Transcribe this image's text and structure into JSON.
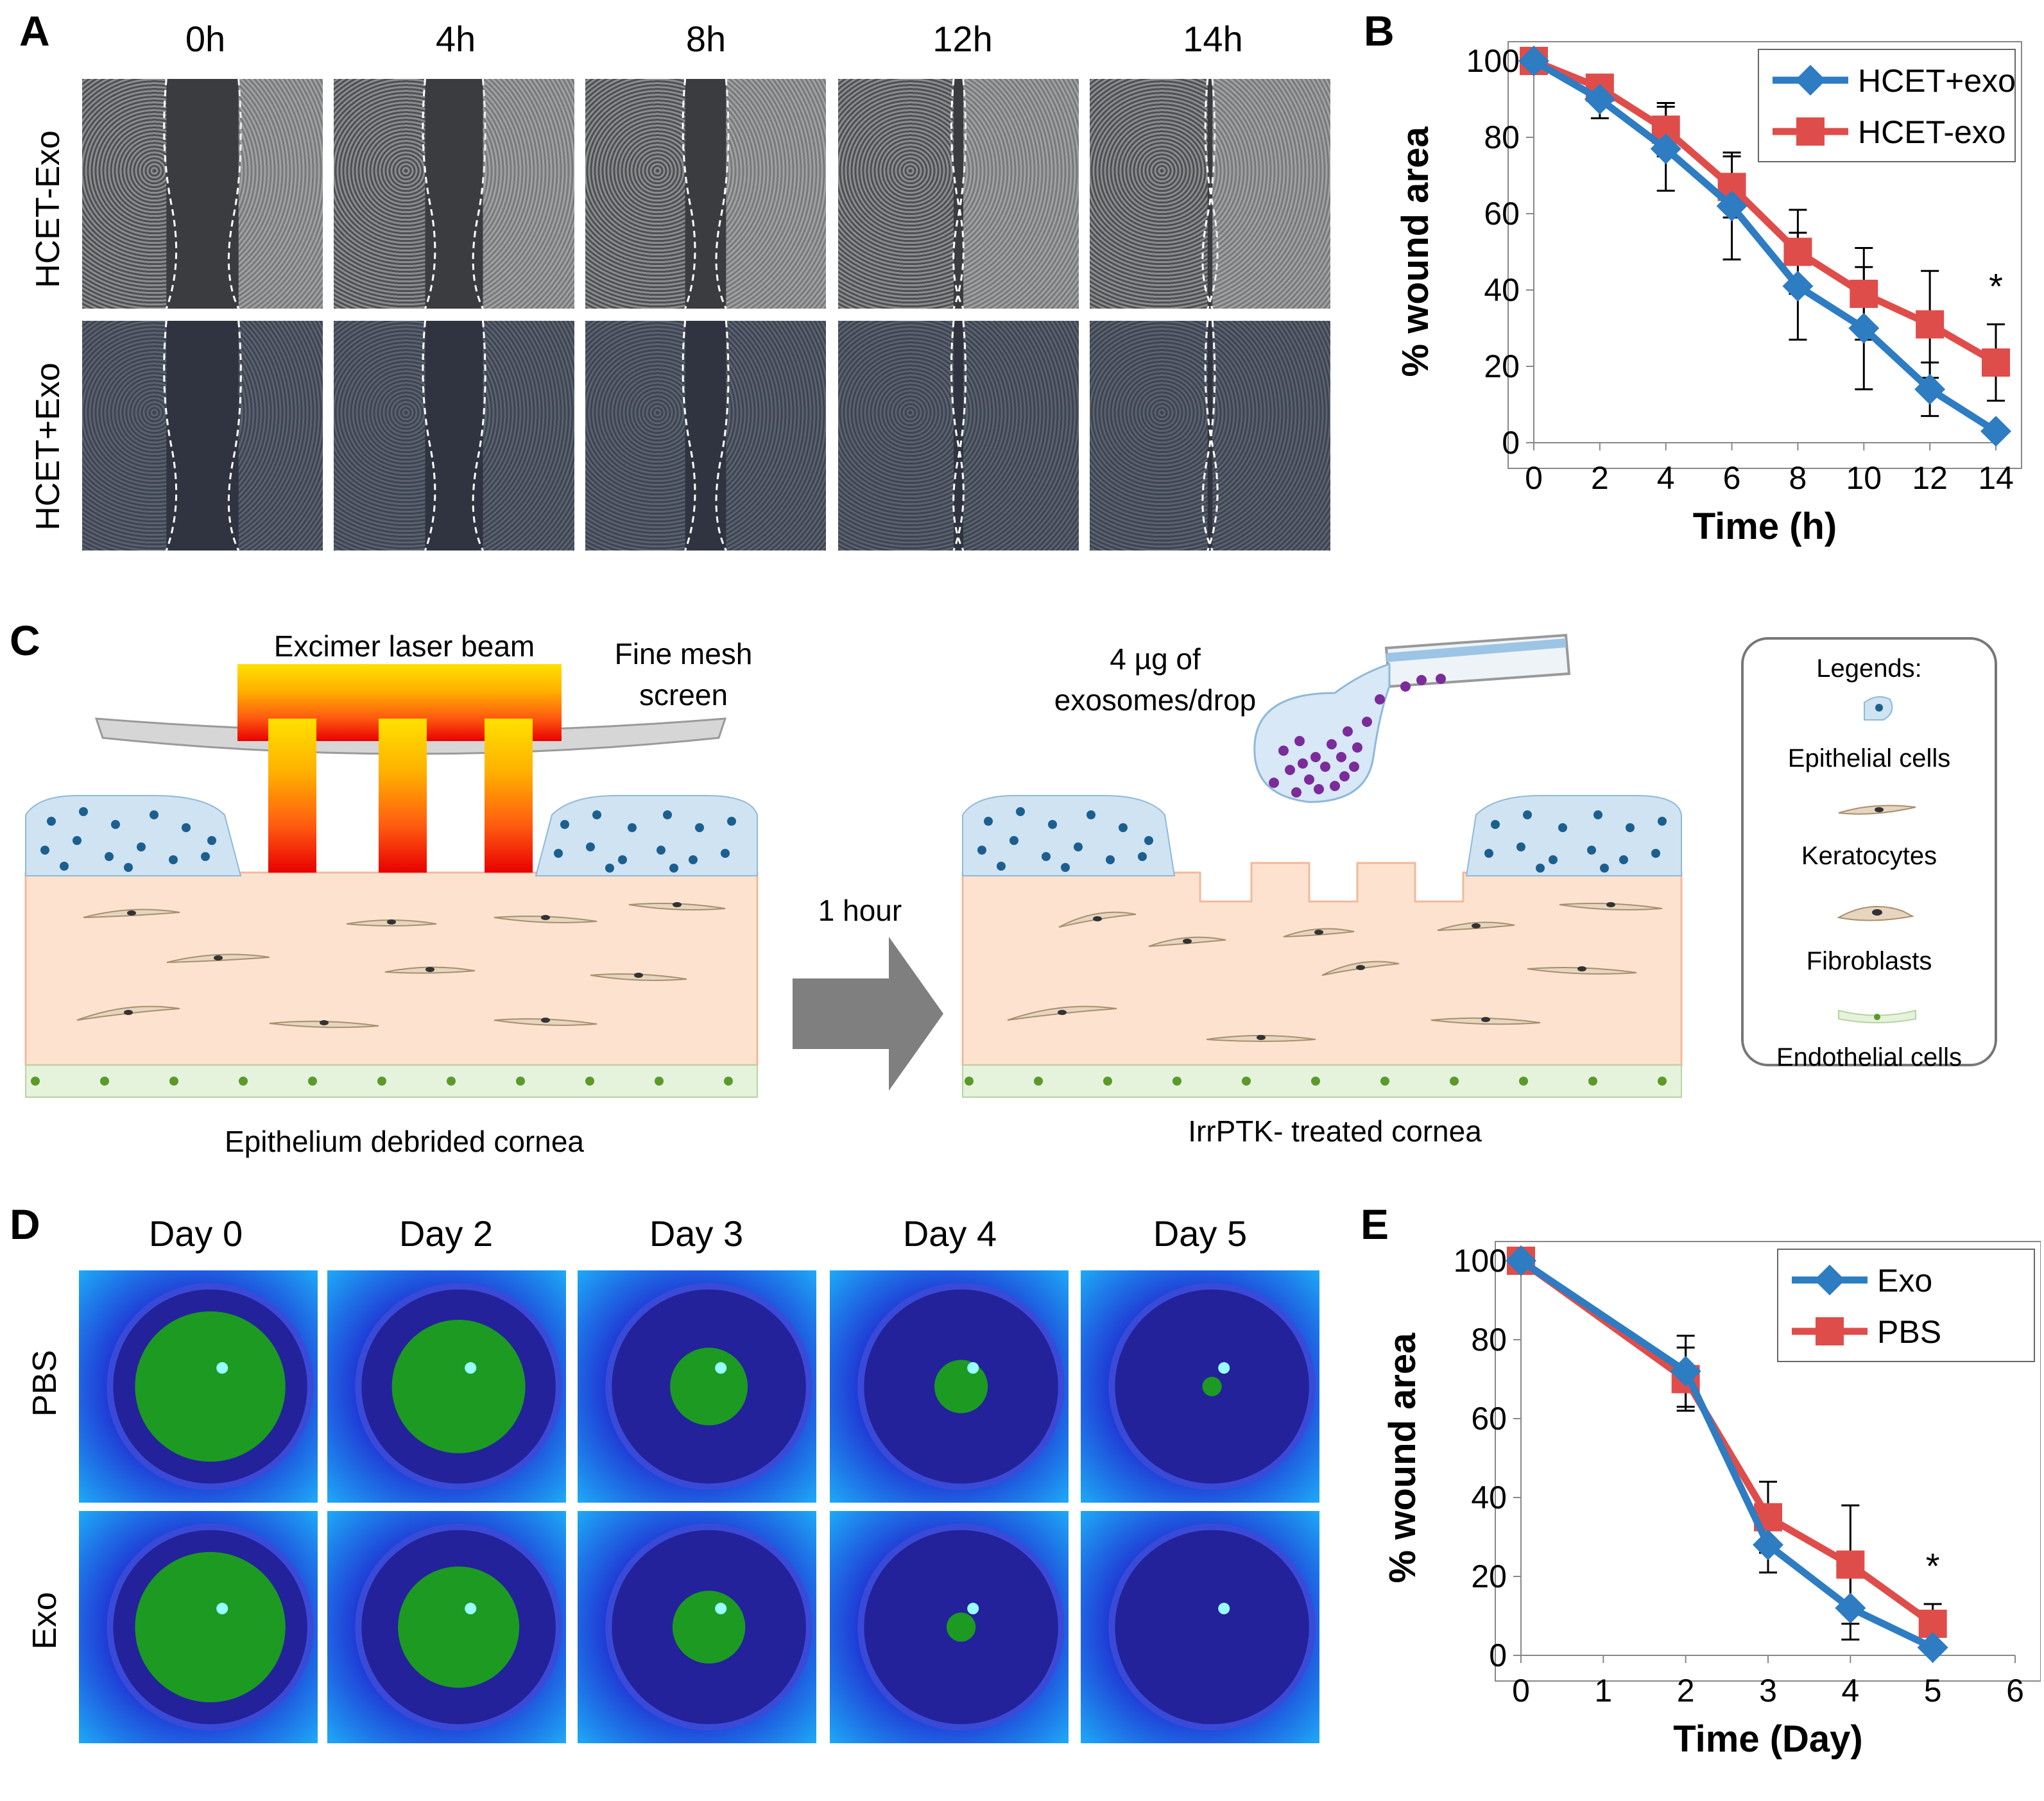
{
  "panel_a": {
    "label": "A",
    "columns": [
      "0h",
      "4h",
      "8h",
      "12h",
      "14h"
    ],
    "rows": [
      "HCET-Exo",
      "HCET+Exo"
    ],
    "gap_fraction": [
      0.3,
      0.24,
      0.17,
      0.04,
      0.02
    ]
  },
  "panel_b": {
    "label": "B",
    "chart_data": {
      "type": "line",
      "xlabel": "Time (h)",
      "ylabel": "% wound area",
      "x": [
        0,
        2,
        4,
        6,
        8,
        10,
        12,
        14
      ],
      "xlim": [
        0,
        14
      ],
      "ylim": [
        0,
        100
      ],
      "xticks": [
        "0",
        "2",
        "4",
        "6",
        "8",
        "10",
        "12",
        "14"
      ],
      "yticks": [
        "0",
        "20",
        "40",
        "60",
        "80",
        "100"
      ],
      "legend_position": "top-right",
      "annotation": "*",
      "series": [
        {
          "name": "HCET+exo",
          "color": "#2e7cc2",
          "marker": "diamond",
          "values": [
            100,
            90,
            77,
            62,
            41,
            30,
            14,
            3
          ],
          "errors": [
            0,
            5,
            11,
            14,
            14,
            16,
            7,
            0
          ]
        },
        {
          "name": "HCET-exo",
          "color": "#df4d4b",
          "marker": "square",
          "values": [
            100,
            93,
            82,
            67,
            50,
            39,
            31,
            21
          ],
          "errors": [
            0,
            3,
            7,
            8,
            11,
            12,
            14,
            10
          ]
        }
      ]
    }
  },
  "panel_c": {
    "label": "C",
    "laser_label": "Excimer laser beam",
    "mesh_label_1": "Fine mesh",
    "mesh_label_2": "screen",
    "left_caption": "Epithelium debrided cornea",
    "arrow_label": "1 hour",
    "drop_label_1": "4 µg of",
    "drop_label_2": "exosomes/drop",
    "right_caption": "IrrPTK- treated cornea",
    "legend_title": "Legends:",
    "legend_items": [
      "Epithelial cells",
      "Keratocytes",
      "Fibroblasts",
      "Endothelial cells"
    ]
  },
  "panel_d": {
    "label": "D",
    "columns": [
      "Day 0",
      "Day 2",
      "Day 3",
      "Day 4",
      "Day 5"
    ],
    "rows": [
      "PBS",
      "Exo"
    ],
    "stain_fraction": [
      [
        0.62,
        0.55,
        0.32,
        0.22,
        0.08
      ],
      [
        0.62,
        0.5,
        0.3,
        0.12,
        0.0
      ]
    ]
  },
  "panel_e": {
    "label": "E",
    "chart_data": {
      "type": "line",
      "xlabel": "Time (Day)",
      "ylabel": "% wound area",
      "x": [
        0,
        2,
        3,
        4,
        5
      ],
      "xlim": [
        0,
        6
      ],
      "ylim": [
        0,
        100
      ],
      "xticks": [
        "0",
        "1",
        "2",
        "3",
        "4",
        "5",
        "6"
      ],
      "yticks": [
        "0",
        "20",
        "40",
        "60",
        "80",
        "100"
      ],
      "legend_position": "top-right",
      "annotation": "*",
      "series": [
        {
          "name": "Exo",
          "color": "#2e7cc2",
          "marker": "diamond",
          "values": [
            100,
            72,
            28,
            12,
            2
          ],
          "errors": [
            0,
            9,
            7,
            8,
            0
          ]
        },
        {
          "name": "PBS",
          "color": "#df4d4b",
          "marker": "square",
          "values": [
            100,
            70,
            35,
            23,
            8
          ],
          "errors": [
            0,
            8,
            9,
            15,
            5
          ]
        }
      ]
    }
  }
}
